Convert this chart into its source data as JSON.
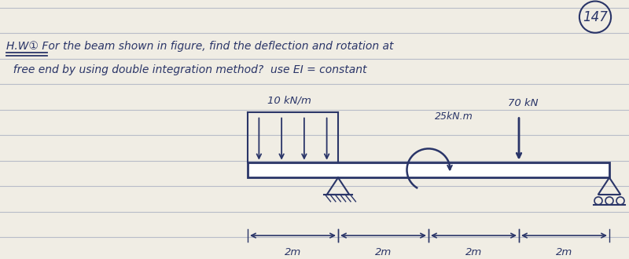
{
  "page_number": "147",
  "background_color": "#f0ede4",
  "line_color": "#b8bcc8",
  "ink_color": "#2a3568",
  "title_line1": "H.W① For the beam shown in figure, find the deflection and rotation at",
  "title_line2": "  free end by using double integration method?  use EI = constant",
  "dist_load_label": "10 kN/m",
  "moment_label": "25kN.m",
  "point_load_label": "70 kN",
  "dim_labels": [
    "2m",
    "2m",
    "2m",
    "2m"
  ],
  "num_lines": 9,
  "figsize": [
    8.0,
    3.3
  ],
  "dpi": 100
}
